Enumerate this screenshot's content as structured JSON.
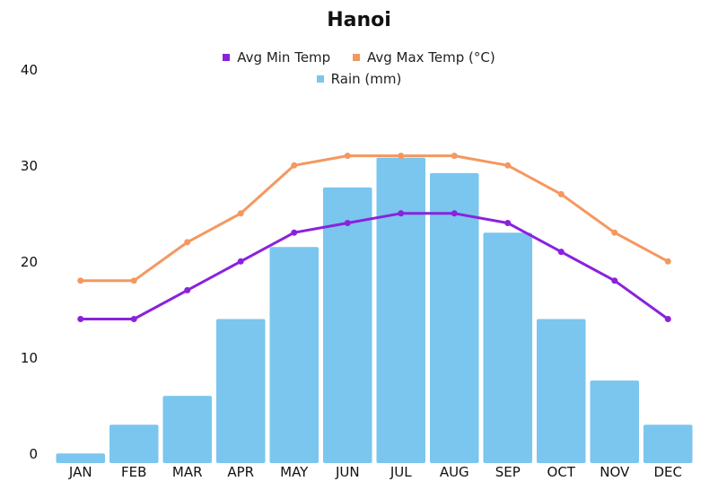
{
  "chart_data": {
    "type": "bar",
    "title": "Hanoi",
    "categories": [
      "JAN",
      "FEB",
      "MAR",
      "APR",
      "MAY",
      "JUN",
      "JUL",
      "AUG",
      "SEP",
      "OCT",
      "NOV",
      "DEC"
    ],
    "ylim": [
      0,
      40
    ],
    "yticks": [
      0,
      10,
      20,
      30,
      40
    ],
    "legend_position": "top",
    "grid": false,
    "series": [
      {
        "name": "Avg Min Temp",
        "type": "line",
        "color": "#8a22dd",
        "values": [
          15,
          15,
          18,
          21,
          24,
          25,
          26,
          26,
          25,
          22,
          19,
          15
        ]
      },
      {
        "name": "Avg Max Temp (°C)",
        "type": "line",
        "color": "#f4985f",
        "values": [
          19,
          19,
          23,
          26,
          31,
          32,
          32,
          32,
          31,
          28,
          24,
          21
        ]
      },
      {
        "name": "Rain (mm)",
        "type": "bar",
        "color": "#7ac6ee",
        "values": [
          1,
          4,
          7,
          15,
          22.5,
          28.7,
          31.8,
          30.2,
          24,
          15,
          8.6,
          4
        ]
      }
    ]
  }
}
